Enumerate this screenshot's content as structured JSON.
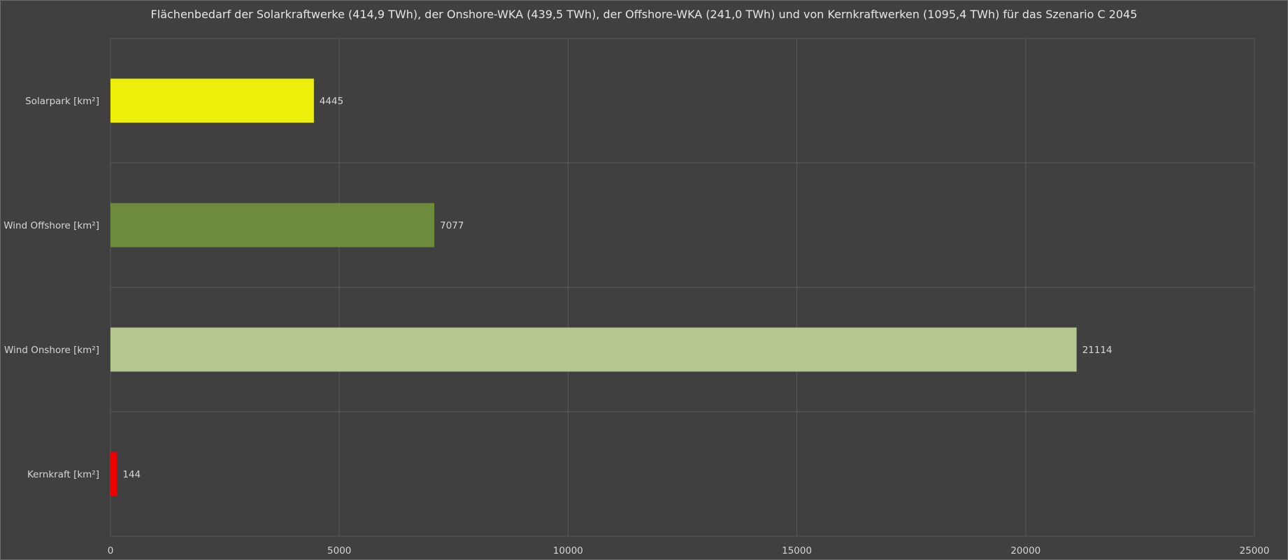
{
  "chart_data": {
    "type": "bar",
    "orientation": "horizontal",
    "title": "Flächenbedarf der Solarkraftwerke (414,9 TWh), der Onshore-WKA (439,5 TWh), der Offshore-WKA (241,0 TWh) und von Kernkraftwerken (1095,4 TWh) für das Szenario C 2045",
    "categories": [
      "Solarpark [km²]",
      "Wind Offshore [km²]",
      "Wind Onshore [km²]",
      "Kernkraft [km²]"
    ],
    "values": [
      4445,
      7077,
      21114,
      144
    ],
    "colors": [
      "#eeee0b",
      "#6e8b3d",
      "#b5c78f",
      "#ee0000"
    ],
    "xlim": [
      0,
      25000
    ],
    "xticks": [
      "0",
      "5000",
      "10000",
      "15000",
      "20000",
      "25000"
    ],
    "grid": true,
    "legend": "none"
  }
}
